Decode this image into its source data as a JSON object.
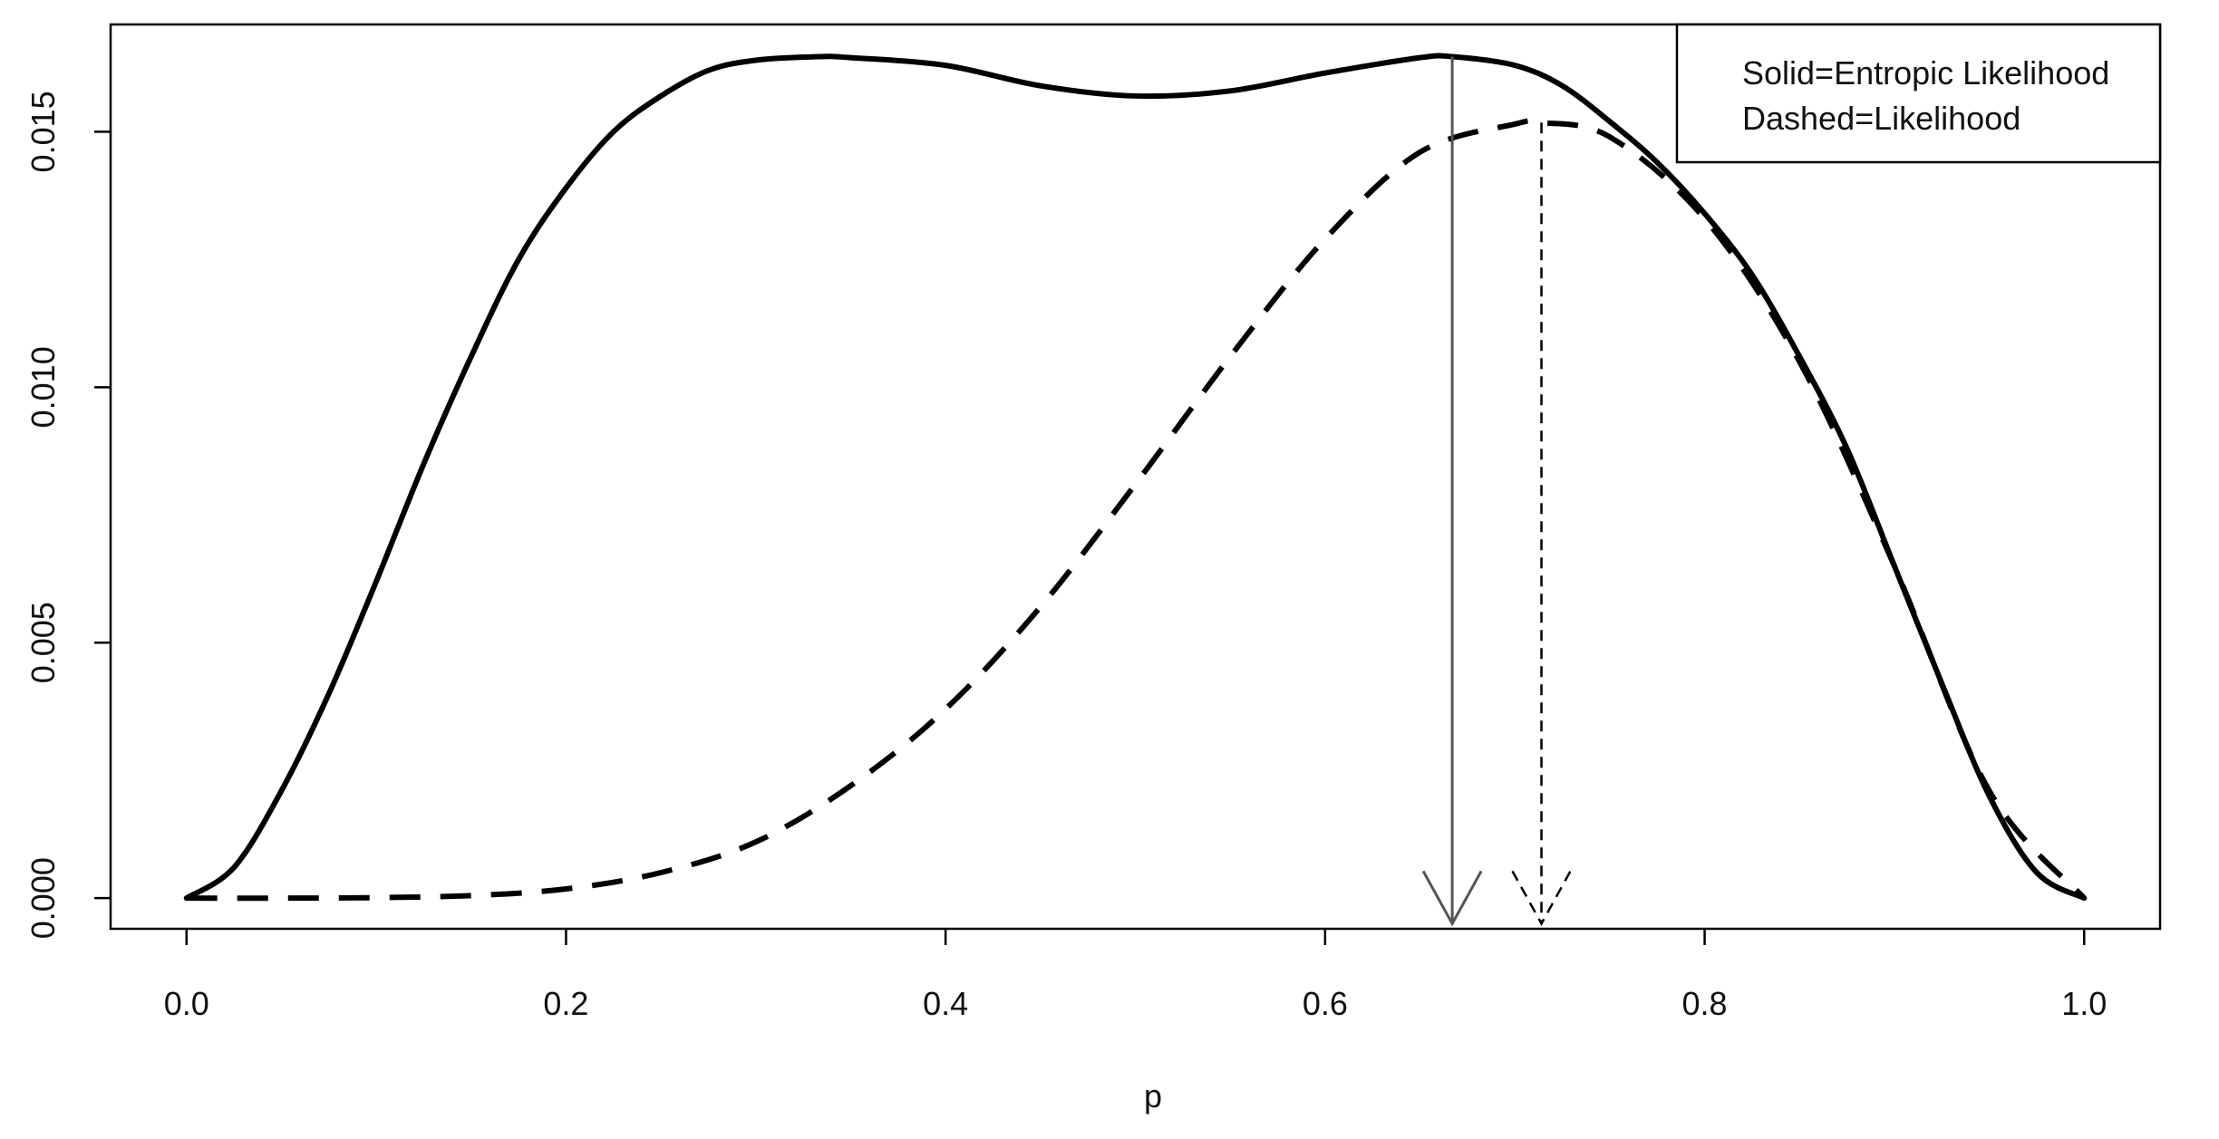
{
  "chart_data": {
    "type": "line",
    "title": "",
    "xlabel": "p",
    "ylabel": "",
    "xlim": [
      -0.04,
      1.04
    ],
    "ylim": [
      -0.0006,
      0.0171
    ],
    "grid": false,
    "legend": {
      "placement": "top-right",
      "entries": [
        "Solid=Entropic Likelihood",
        "Dashed=Likelihood"
      ]
    },
    "x_ticks": [
      {
        "value": 0.0,
        "label": "0.0"
      },
      {
        "value": 0.2,
        "label": "0.2"
      },
      {
        "value": 0.4,
        "label": "0.4"
      },
      {
        "value": 0.6,
        "label": "0.6"
      },
      {
        "value": 0.8,
        "label": "0.8"
      },
      {
        "value": 1.0,
        "label": "1.0"
      }
    ],
    "y_ticks": [
      {
        "value": 0.0,
        "label": "0.000"
      },
      {
        "value": 0.005,
        "label": "0.005"
      },
      {
        "value": 0.01,
        "label": "0.010"
      },
      {
        "value": 0.015,
        "label": "0.015"
      }
    ],
    "series": [
      {
        "style": "solid",
        "color": "#000000",
        "x": [
          0.0,
          0.025,
          0.05,
          0.075,
          0.1,
          0.125,
          0.15,
          0.175,
          0.2,
          0.225,
          0.25,
          0.275,
          0.3,
          0.333,
          0.35,
          0.4,
          0.45,
          0.5,
          0.55,
          0.6,
          0.65,
          0.667,
          0.7,
          0.725,
          0.75,
          0.775,
          0.8,
          0.825,
          0.85,
          0.875,
          0.9,
          0.925,
          0.95,
          0.975,
          1.0
        ],
        "y": [
          0.0,
          0.0006,
          0.0021,
          0.004,
          0.0062,
          0.0085,
          0.0106,
          0.0125,
          0.0139,
          0.015,
          0.0157,
          0.0162,
          0.0164,
          0.01647,
          0.01645,
          0.0163,
          0.0159,
          0.0157,
          0.0158,
          0.01615,
          0.01645,
          0.01647,
          0.0163,
          0.0159,
          0.0152,
          0.0144,
          0.0134,
          0.0122,
          0.0106,
          0.0088,
          0.0065,
          0.0042,
          0.002,
          0.0005,
          0.0
        ]
      },
      {
        "style": "dashed",
        "color": "#000000",
        "x": [
          0.0,
          0.05,
          0.1,
          0.15,
          0.2,
          0.25,
          0.3,
          0.35,
          0.4,
          0.45,
          0.5,
          0.55,
          0.6,
          0.65,
          0.7,
          0.714,
          0.75,
          0.8,
          0.85,
          0.9,
          0.95,
          1.0
        ],
        "y": [
          0.0,
          0.0,
          1e-05,
          5e-05,
          0.00018,
          0.0005,
          0.0011,
          0.0022,
          0.0037,
          0.0057,
          0.0081,
          0.0106,
          0.0129,
          0.0146,
          0.01515,
          0.01518,
          0.0149,
          0.0133,
          0.0105,
          0.0065,
          0.0021,
          0.0
        ]
      }
    ],
    "annotations": [
      {
        "type": "arrow",
        "style": "solid",
        "color": "#555555",
        "x": 0.667,
        "from_y": 0.01647,
        "to_y": -0.0005
      },
      {
        "type": "arrow",
        "style": "dashed",
        "color": "#000000",
        "x": 0.714,
        "from_y": 0.01518,
        "to_y": -0.0005
      }
    ]
  }
}
